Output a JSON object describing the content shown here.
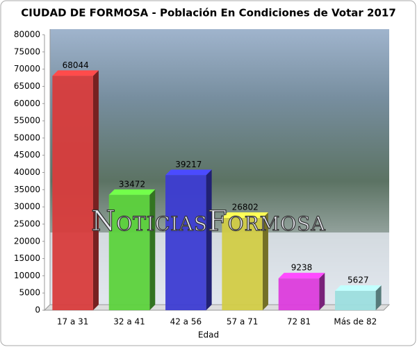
{
  "chart_data": {
    "type": "bar3d",
    "title": "CIUDAD DE FORMOSA  - Población En Condiciones de Votar 2017",
    "watermark": "NoticiasFormosa",
    "x_label": "Edad",
    "categories": [
      "17 a 31",
      "32 a 41",
      "42 a 56",
      "57 a 71",
      "72 81",
      "Más de 82"
    ],
    "values": [
      68044,
      33472,
      39217,
      26802,
      9238,
      5627
    ],
    "colors": [
      "#d83c3c",
      "#5cd23c",
      "#3c3cd2",
      "#d2cc46",
      "#dc3cdc",
      "#9cdede"
    ],
    "ylim": [
      0,
      80000
    ],
    "yticks": [
      0,
      5000,
      10000,
      15000,
      20000,
      25000,
      30000,
      35000,
      40000,
      45000,
      50000,
      55000,
      60000,
      65000,
      70000,
      75000,
      80000
    ],
    "grid": false
  }
}
